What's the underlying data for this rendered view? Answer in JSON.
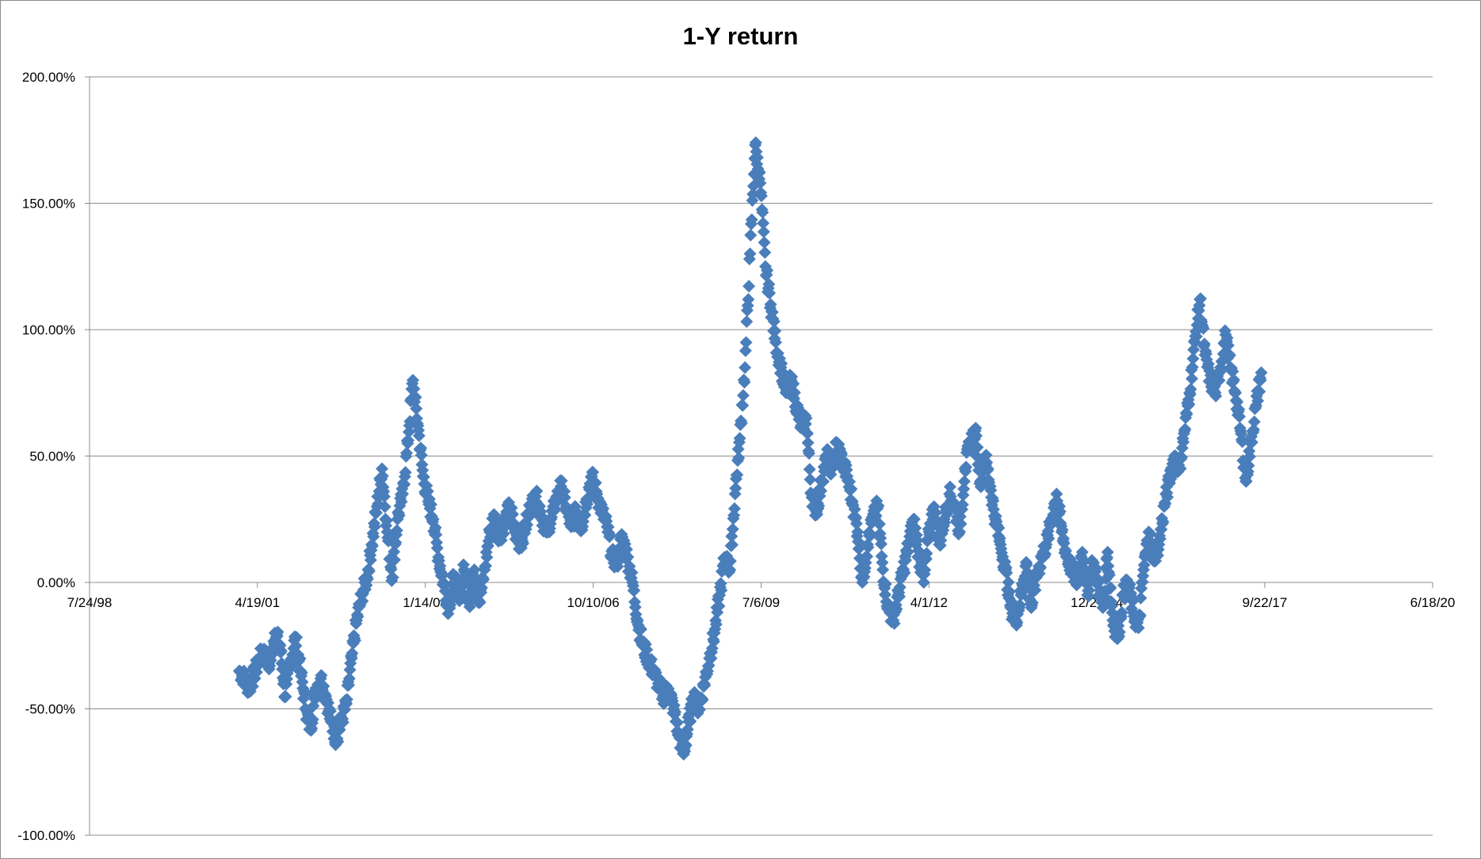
{
  "chart_data": {
    "type": "scatter",
    "title": "1-Y return",
    "xlabel": "",
    "ylabel": "",
    "marker": "diamond",
    "marker_color": "#4a7ebb",
    "grid": "horizontal",
    "legend": "none",
    "x_axis": {
      "type": "date",
      "min": "7/24/98",
      "max": "6/18/20",
      "tick_labels": [
        "7/24/98",
        "4/19/01",
        "1/14/04",
        "10/10/06",
        "7/6/09",
        "4/1/12",
        "12/27/14",
        "9/22/17",
        "6/18/20"
      ]
    },
    "y_axis": {
      "min": -1.0,
      "max": 2.0,
      "format": "percent",
      "tick_labels": [
        "200.00%",
        "150.00%",
        "100.00%",
        "50.00%",
        "0.00%",
        "-50.00%",
        "-100.00%"
      ]
    },
    "series": [
      {
        "points": [
          [
            "2001-01-01",
            -0.35
          ],
          [
            "2001-02-01",
            -0.38
          ],
          [
            "2001-03-01",
            -0.42
          ],
          [
            "2001-04-01",
            -0.36
          ],
          [
            "2001-05-01",
            -0.3
          ],
          [
            "2001-06-01",
            -0.28
          ],
          [
            "2001-07-01",
            -0.33
          ],
          [
            "2001-08-01",
            -0.2
          ],
          [
            "2001-09-01",
            -0.25
          ],
          [
            "2001-10-01",
            -0.45
          ],
          [
            "2001-11-01",
            -0.32
          ],
          [
            "2001-12-01",
            -0.22
          ],
          [
            "2002-01-01",
            -0.35
          ],
          [
            "2002-02-01",
            -0.5
          ],
          [
            "2002-03-01",
            -0.58
          ],
          [
            "2002-04-01",
            -0.42
          ],
          [
            "2002-05-01",
            -0.38
          ],
          [
            "2002-06-01",
            -0.45
          ],
          [
            "2002-07-01",
            -0.55
          ],
          [
            "2002-08-01",
            -0.62
          ],
          [
            "2002-09-01",
            -0.55
          ],
          [
            "2002-10-01",
            -0.48
          ],
          [
            "2002-11-01",
            -0.3
          ],
          [
            "2002-12-01",
            -0.15
          ],
          [
            "2003-01-01",
            -0.05
          ],
          [
            "2003-02-01",
            0.02
          ],
          [
            "2003-03-01",
            0.15
          ],
          [
            "2003-04-01",
            0.3
          ],
          [
            "2003-05-01",
            0.45
          ],
          [
            "2003-06-01",
            0.2
          ],
          [
            "2003-07-01",
            0.02
          ],
          [
            "2003-08-01",
            0.25
          ],
          [
            "2003-09-01",
            0.35
          ],
          [
            "2003-10-01",
            0.55
          ],
          [
            "2003-11-01",
            0.8
          ],
          [
            "2003-12-01",
            0.62
          ],
          [
            "2004-01-01",
            0.42
          ],
          [
            "2004-02-01",
            0.32
          ],
          [
            "2004-03-01",
            0.25
          ],
          [
            "2004-04-01",
            0.1
          ],
          [
            "2004-05-01",
            0.0
          ],
          [
            "2004-06-01",
            -0.1
          ],
          [
            "2004-07-01",
            0.02
          ],
          [
            "2004-08-01",
            -0.05
          ],
          [
            "2004-09-01",
            0.05
          ],
          [
            "2004-10-01",
            -0.08
          ],
          [
            "2004-11-01",
            0.05
          ],
          [
            "2004-12-01",
            -0.08
          ],
          [
            "2005-01-01",
            0.05
          ],
          [
            "2005-02-01",
            0.2
          ],
          [
            "2005-03-01",
            0.26
          ],
          [
            "2005-04-01",
            0.18
          ],
          [
            "2005-05-01",
            0.24
          ],
          [
            "2005-06-01",
            0.3
          ],
          [
            "2005-07-01",
            0.2
          ],
          [
            "2005-08-01",
            0.15
          ],
          [
            "2005-09-01",
            0.22
          ],
          [
            "2005-10-01",
            0.3
          ],
          [
            "2005-11-01",
            0.34
          ],
          [
            "2005-12-01",
            0.28
          ],
          [
            "2006-01-01",
            0.2
          ],
          [
            "2006-02-01",
            0.25
          ],
          [
            "2006-03-01",
            0.32
          ],
          [
            "2006-04-01",
            0.38
          ],
          [
            "2006-05-01",
            0.3
          ],
          [
            "2006-06-01",
            0.22
          ],
          [
            "2006-07-01",
            0.28
          ],
          [
            "2006-08-01",
            0.22
          ],
          [
            "2006-09-01",
            0.33
          ],
          [
            "2006-10-01",
            0.42
          ],
          [
            "2006-11-01",
            0.35
          ],
          [
            "2006-12-01",
            0.28
          ],
          [
            "2007-01-01",
            0.22
          ],
          [
            "2007-02-01",
            0.1
          ],
          [
            "2007-03-01",
            0.08
          ],
          [
            "2007-04-01",
            0.18
          ],
          [
            "2007-05-01",
            0.1
          ],
          [
            "2007-06-01",
            0.0
          ],
          [
            "2007-07-01",
            -0.15
          ],
          [
            "2007-08-01",
            -0.25
          ],
          [
            "2007-09-01",
            -0.3
          ],
          [
            "2007-10-01",
            -0.35
          ],
          [
            "2007-11-01",
            -0.4
          ],
          [
            "2007-12-01",
            -0.45
          ],
          [
            "2008-01-01",
            -0.42
          ],
          [
            "2008-02-01",
            -0.5
          ],
          [
            "2008-03-01",
            -0.6
          ],
          [
            "2008-04-01",
            -0.68
          ],
          [
            "2008-05-01",
            -0.55
          ],
          [
            "2008-06-01",
            -0.45
          ],
          [
            "2008-07-01",
            -0.5
          ],
          [
            "2008-08-01",
            -0.4
          ],
          [
            "2008-09-01",
            -0.3
          ],
          [
            "2008-10-01",
            -0.2
          ],
          [
            "2008-11-01",
            -0.05
          ],
          [
            "2008-12-01",
            0.1
          ],
          [
            "2009-01-01",
            0.05
          ],
          [
            "2009-02-01",
            0.35
          ],
          [
            "2009-03-01",
            0.57
          ],
          [
            "2009-04-01",
            0.85
          ],
          [
            "2009-05-01",
            1.3
          ],
          [
            "2009-06-01",
            1.73
          ],
          [
            "2009-07-01",
            1.58
          ],
          [
            "2009-08-01",
            1.25
          ],
          [
            "2009-09-01",
            1.1
          ],
          [
            "2009-10-01",
            0.95
          ],
          [
            "2009-11-01",
            0.85
          ],
          [
            "2009-12-01",
            0.75
          ],
          [
            "2010-01-01",
            0.8
          ],
          [
            "2010-02-01",
            0.7
          ],
          [
            "2010-03-01",
            0.62
          ],
          [
            "2010-04-01",
            0.65
          ],
          [
            "2010-05-01",
            0.35
          ],
          [
            "2010-06-01",
            0.28
          ],
          [
            "2010-07-01",
            0.4
          ],
          [
            "2010-08-01",
            0.5
          ],
          [
            "2010-09-01",
            0.45
          ],
          [
            "2010-10-01",
            0.55
          ],
          [
            "2010-11-01",
            0.48
          ],
          [
            "2010-12-01",
            0.42
          ],
          [
            "2011-01-01",
            0.32
          ],
          [
            "2011-02-01",
            0.2
          ],
          [
            "2011-03-01",
            0.0
          ],
          [
            "2011-04-01",
            0.15
          ],
          [
            "2011-05-01",
            0.25
          ],
          [
            "2011-06-01",
            0.3
          ],
          [
            "2011-07-01",
            0.05
          ],
          [
            "2011-08-01",
            -0.1
          ],
          [
            "2011-09-01",
            -0.15
          ],
          [
            "2011-10-01",
            -0.05
          ],
          [
            "2011-11-01",
            0.05
          ],
          [
            "2011-12-01",
            0.15
          ],
          [
            "2012-01-01",
            0.25
          ],
          [
            "2012-02-01",
            0.1
          ],
          [
            "2012-03-01",
            0.0
          ],
          [
            "2012-04-01",
            0.2
          ],
          [
            "2012-05-01",
            0.3
          ],
          [
            "2012-06-01",
            0.15
          ],
          [
            "2012-07-01",
            0.25
          ],
          [
            "2012-08-01",
            0.35
          ],
          [
            "2012-09-01",
            0.3
          ],
          [
            "2012-10-01",
            0.2
          ],
          [
            "2012-11-01",
            0.45
          ],
          [
            "2012-12-01",
            0.55
          ],
          [
            "2013-01-01",
            0.6
          ],
          [
            "2013-02-01",
            0.4
          ],
          [
            "2013-03-01",
            0.5
          ],
          [
            "2013-04-01",
            0.38
          ],
          [
            "2013-05-01",
            0.25
          ],
          [
            "2013-06-01",
            0.15
          ],
          [
            "2013-07-01",
            0.05
          ],
          [
            "2013-08-01",
            -0.1
          ],
          [
            "2013-09-01",
            -0.15
          ],
          [
            "2013-10-01",
            -0.05
          ],
          [
            "2013-11-01",
            0.08
          ],
          [
            "2013-12-01",
            -0.1
          ],
          [
            "2014-01-01",
            0.02
          ],
          [
            "2014-02-01",
            0.1
          ],
          [
            "2014-03-01",
            0.15
          ],
          [
            "2014-04-01",
            0.25
          ],
          [
            "2014-05-01",
            0.35
          ],
          [
            "2014-06-01",
            0.2
          ],
          [
            "2014-07-01",
            0.1
          ],
          [
            "2014-08-01",
            0.05
          ],
          [
            "2014-09-01",
            0.0
          ],
          [
            "2014-10-01",
            0.12
          ],
          [
            "2014-11-01",
            -0.05
          ],
          [
            "2014-12-01",
            0.08
          ],
          [
            "2015-01-01",
            0.0
          ],
          [
            "2015-02-01",
            -0.1
          ],
          [
            "2015-03-01",
            0.12
          ],
          [
            "2015-04-01",
            -0.15
          ],
          [
            "2015-05-01",
            -0.22
          ],
          [
            "2015-06-01",
            -0.05
          ],
          [
            "2015-07-01",
            0.0
          ],
          [
            "2015-08-01",
            -0.12
          ],
          [
            "2015-09-01",
            -0.18
          ],
          [
            "2015-10-01",
            0.05
          ],
          [
            "2015-11-01",
            0.2
          ],
          [
            "2015-12-01",
            0.1
          ],
          [
            "2016-01-01",
            0.15
          ],
          [
            "2016-02-01",
            0.3
          ],
          [
            "2016-03-01",
            0.4
          ],
          [
            "2016-04-01",
            0.5
          ],
          [
            "2016-05-01",
            0.45
          ],
          [
            "2016-06-01",
            0.6
          ],
          [
            "2016-07-01",
            0.75
          ],
          [
            "2016-08-01",
            0.95
          ],
          [
            "2016-09-01",
            1.12
          ],
          [
            "2016-10-01",
            0.9
          ],
          [
            "2016-11-01",
            0.8
          ],
          [
            "2016-12-01",
            0.75
          ],
          [
            "2017-01-01",
            0.85
          ],
          [
            "2017-02-01",
            0.98
          ],
          [
            "2017-03-01",
            0.85
          ],
          [
            "2017-04-01",
            0.75
          ],
          [
            "2017-05-01",
            0.6
          ],
          [
            "2017-06-01",
            0.4
          ],
          [
            "2017-07-01",
            0.55
          ],
          [
            "2017-08-01",
            0.7
          ],
          [
            "2017-09-01",
            0.83
          ]
        ]
      }
    ]
  }
}
